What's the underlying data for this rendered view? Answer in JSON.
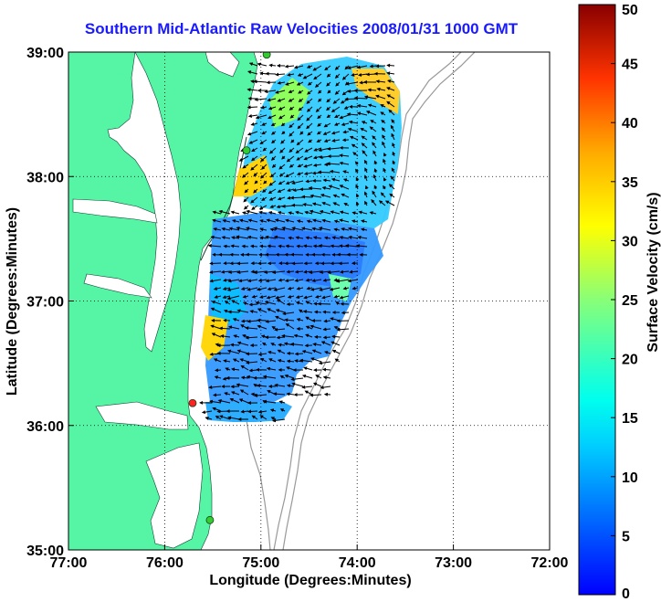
{
  "title": "Southern Mid-Atlantic Raw Velocities 2008/01/31 1000 GMT",
  "x_axis": {
    "label": "Longitude (Degrees:Minutes)",
    "ticks": [
      "77:00",
      "76:00",
      "75:00",
      "74:00",
      "73:00",
      "72:00"
    ]
  },
  "y_axis": {
    "label": "Latitude (Degrees:Minutes)",
    "ticks": [
      "39:00",
      "38:00",
      "37:00",
      "36:00",
      "35:00"
    ]
  },
  "colorbar": {
    "label": "Surface Velocity (cm/s)",
    "ticks": [
      "50",
      "45",
      "40",
      "35",
      "30",
      "25",
      "20",
      "15",
      "10",
      "5",
      "0"
    ],
    "colormap": "jet"
  },
  "colors": {
    "land": "#55f5a5",
    "title": "#1a1aff",
    "grid": "#000000",
    "bathymetry": "#999999",
    "station": "#33cc33",
    "station_highlight": "#ff2222"
  },
  "chart_data": {
    "type": "map",
    "lon_range": [
      -77,
      -72
    ],
    "lat_range": [
      35,
      39
    ],
    "grid": true,
    "stations": [
      {
        "lon": -74.94,
        "lat": 38.98,
        "color": "green"
      },
      {
        "lon": -75.15,
        "lat": 38.21,
        "color": "green"
      },
      {
        "lon": -75.71,
        "lat": 36.18,
        "color": "red"
      },
      {
        "lon": -75.53,
        "lat": 35.24,
        "color": "green"
      }
    ]
  }
}
